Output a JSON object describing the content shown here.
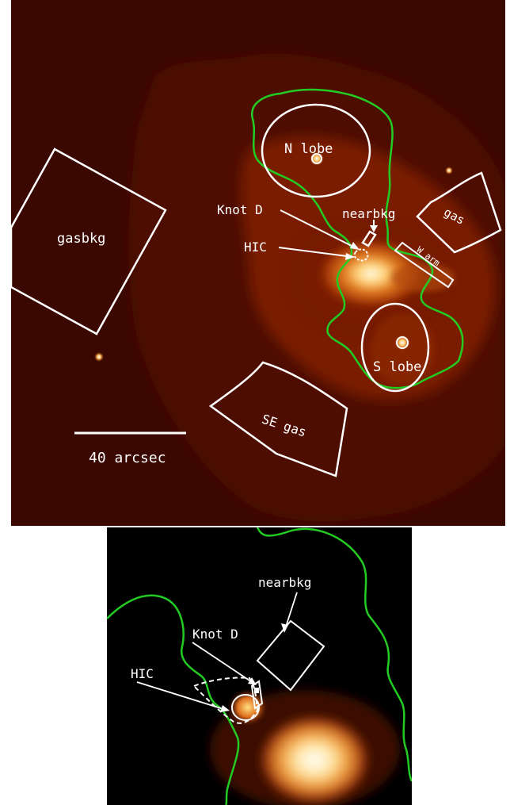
{
  "top_panel": {
    "labels": {
      "n_lobe": "N lobe",
      "s_lobe": "S lobe",
      "gasbkg": "gasbkg",
      "gas": "gas",
      "se_gas": "SE gas",
      "knot_d": "Knot D",
      "hic": "HIC",
      "nearbkg": "nearbkg",
      "w_arm": "W arm",
      "scale_bar": "40 arcsec"
    }
  },
  "bottom_panel": {
    "labels": {
      "nearbkg": "nearbkg",
      "knot_d": "Knot D",
      "hic": "HIC"
    }
  },
  "colors": {
    "background": "#3a0800",
    "contour": "#22cc22",
    "region": "#ffffff",
    "bottom_background": "#000000"
  }
}
